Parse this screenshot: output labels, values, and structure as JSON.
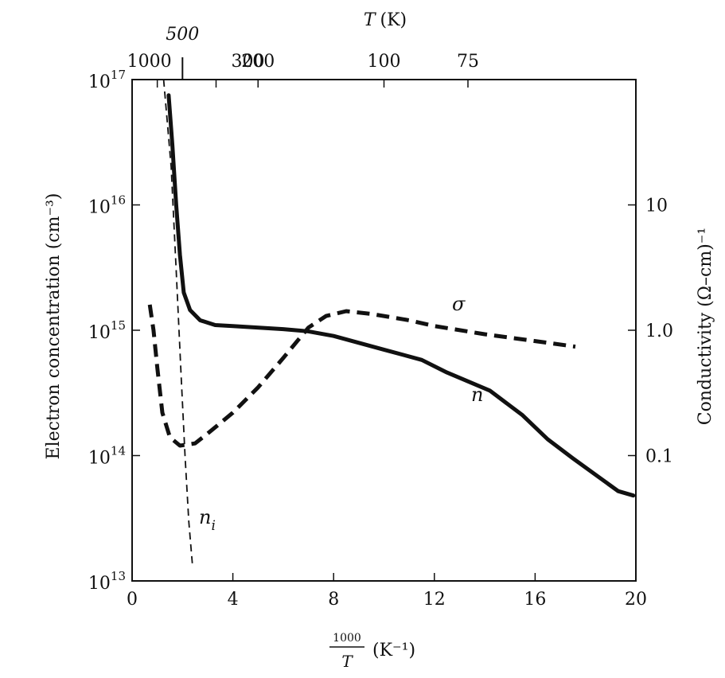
{
  "chart_data": {
    "type": "line",
    "x_axis": {
      "label_num": "1000",
      "label_den": "T",
      "label_unit": "(K⁻¹)",
      "range": [
        0,
        20
      ],
      "ticks": [
        0,
        4,
        8,
        12,
        16,
        20
      ],
      "tick_labels": [
        "0",
        "4",
        "8",
        "12",
        "16",
        "20"
      ]
    },
    "top_axis": {
      "label_var": "T",
      "label_unit": "(K)",
      "ticks": [
        {
          "T": 1000,
          "label": "1000"
        },
        {
          "T": 500,
          "label": "500"
        },
        {
          "T": 300,
          "label": "300"
        },
        {
          "T": 200,
          "label": "200"
        },
        {
          "T": 100,
          "label": "100"
        },
        {
          "T": 75,
          "label": "75"
        }
      ]
    },
    "y_left": {
      "label": "Electron concentration (cm⁻³)",
      "scale": "log",
      "range": [
        10000000000000.0,
        1e+17
      ],
      "ticks": [
        {
          "exp": 13,
          "label_base": "10",
          "label_exp": "13"
        },
        {
          "exp": 14,
          "label_base": "10",
          "label_exp": "14"
        },
        {
          "exp": 15,
          "label_base": "10",
          "label_exp": "15"
        },
        {
          "exp": 16,
          "label_base": "10",
          "label_exp": "16"
        },
        {
          "exp": 17,
          "label_base": "10",
          "label_exp": "17"
        }
      ]
    },
    "y_right": {
      "label": "Conductivity (Ω–cm)⁻¹",
      "scale": "log",
      "range": [
        0.01,
        100
      ],
      "ticks": [
        {
          "value": 0.1,
          "label": "0.1"
        },
        {
          "value": 1.0,
          "label": "1.0"
        },
        {
          "value": 10,
          "label": "10"
        }
      ]
    },
    "series": [
      {
        "name": "n",
        "axis": "left",
        "style": "solid",
        "points": [
          [
            1.45,
            7.5e+16
          ],
          [
            1.6,
            3e+16
          ],
          [
            1.75,
            1e+16
          ],
          [
            1.9,
            4000000000000000.0
          ],
          [
            2.05,
            2000000000000000.0
          ],
          [
            2.3,
            1450000000000000.0
          ],
          [
            2.7,
            1200000000000000.0
          ],
          [
            3.3,
            1100000000000000.0
          ],
          [
            4,
            1080000000000000.0
          ],
          [
            6,
            1020000000000000.0
          ],
          [
            7,
            980000000000000.0
          ],
          [
            8,
            900000000000000.0
          ],
          [
            10,
            700000000000000.0
          ],
          [
            11.5,
            580000000000000.0
          ],
          [
            12.5,
            460000000000000.0
          ],
          [
            14.2,
            330000000000000.0
          ],
          [
            15.5,
            210000000000000.0
          ],
          [
            16.5,
            135000000000000.0
          ],
          [
            17.5,
            95000000000000.0
          ],
          [
            18.5,
            68000000000000.0
          ],
          [
            19.3,
            52000000000000.0
          ],
          [
            19.9,
            48000000000000.0
          ]
        ]
      },
      {
        "name": "σ",
        "axis": "right",
        "style": "dashed",
        "points": [
          [
            0.7,
            1.6
          ],
          [
            0.85,
            1.0
          ],
          [
            1.0,
            0.5
          ],
          [
            1.2,
            0.22
          ],
          [
            1.5,
            0.14
          ],
          [
            1.9,
            0.12
          ],
          [
            2.5,
            0.125
          ],
          [
            3.0,
            0.15
          ],
          [
            4,
            0.22
          ],
          [
            5,
            0.35
          ],
          [
            6,
            0.6
          ],
          [
            7,
            1.05
          ],
          [
            7.7,
            1.3
          ],
          [
            8.5,
            1.42
          ],
          [
            9.5,
            1.35
          ],
          [
            11,
            1.2
          ],
          [
            12,
            1.08
          ],
          [
            14,
            0.93
          ],
          [
            16,
            0.82
          ],
          [
            17.6,
            0.74
          ]
        ]
      },
      {
        "name": "n_i",
        "axis": "left",
        "style": "thin-dashed",
        "points": [
          [
            1.25,
            1e+17
          ],
          [
            1.55,
            2e+16
          ],
          [
            1.75,
            3000000000000000.0
          ],
          [
            1.95,
            420000000000000.0
          ],
          [
            2.1,
            100000000000000.0
          ],
          [
            2.25,
            30000000000000.0
          ],
          [
            2.4,
            13000000000000.0
          ]
        ]
      }
    ],
    "annotations": {
      "sigma": "σ",
      "n": "n",
      "ni_base": "n",
      "ni_sub": "i"
    },
    "grid": false,
    "legend": "none"
  }
}
